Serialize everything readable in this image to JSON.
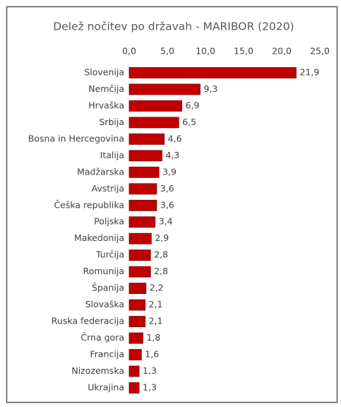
{
  "chart_data": {
    "type": "bar",
    "orientation": "horizontal",
    "title": "Delež nočitev po državah - MARIBOR (2020)",
    "categories": [
      "Slovenija",
      "Nemčija",
      "Hrvaška",
      "Srbija",
      "Bosna in Hercegovina",
      "Italija",
      "Madžarska",
      "Avstrija",
      "Češka republika",
      "Poljska",
      "Makedonija",
      "Turčija",
      "Romunija",
      "Španija",
      "Slovaška",
      "Ruska federacija",
      "Črna gora",
      "Francija",
      "Nizozemska",
      "Ukrajina"
    ],
    "values": [
      21.9,
      9.3,
      6.9,
      6.5,
      4.6,
      4.3,
      3.9,
      3.6,
      3.6,
      3.4,
      2.9,
      2.8,
      2.8,
      2.2,
      2.1,
      2.1,
      1.8,
      1.6,
      1.3,
      1.3
    ],
    "value_labels": [
      "21,9",
      "9,3",
      "6,9",
      "6,5",
      "4,6",
      "4,3",
      "3,9",
      "3,6",
      "3,6",
      "3,4",
      "2,9",
      "2,8",
      "2,8",
      "2,2",
      "2,1",
      "2,1",
      "1,8",
      "1,6",
      "1,3",
      "1,3"
    ],
    "color": "#c00000",
    "xlim": [
      0,
      25
    ],
    "xticks": [
      {
        "value": 0,
        "label": "0,0"
      },
      {
        "value": 5,
        "label": "5,0"
      },
      {
        "value": 10,
        "label": "10,0"
      },
      {
        "value": 15,
        "label": "15,0"
      },
      {
        "value": 20,
        "label": "20,0"
      },
      {
        "value": 25,
        "label": "25,0"
      }
    ],
    "grid": false
  }
}
